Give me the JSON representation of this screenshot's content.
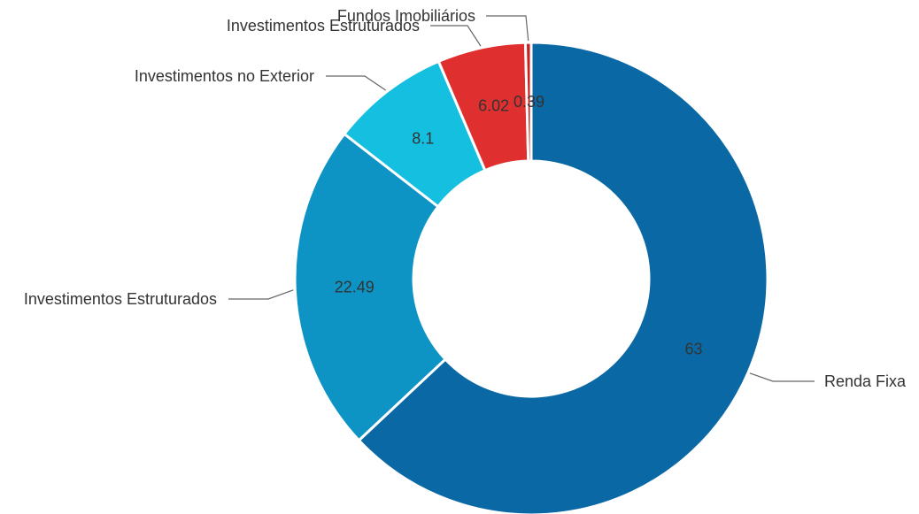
{
  "chart_data": {
    "type": "pie",
    "title": "",
    "legend": "none",
    "categories": [
      "Renda Fixa",
      "Investimentos Estruturados",
      "Investimentos no Exterior",
      "Investimentos Estruturados",
      "Fundos Imobiliários"
    ],
    "values": [
      63,
      22.49,
      8.1,
      6.02,
      0.39
    ],
    "value_labels": [
      "63",
      "22.49",
      "8.1",
      "6.02",
      "0.39"
    ],
    "colors": [
      "#0a68a5",
      "#0e94c4",
      "#14bfe0",
      "#e02f2f",
      "#c91f1f"
    ]
  }
}
